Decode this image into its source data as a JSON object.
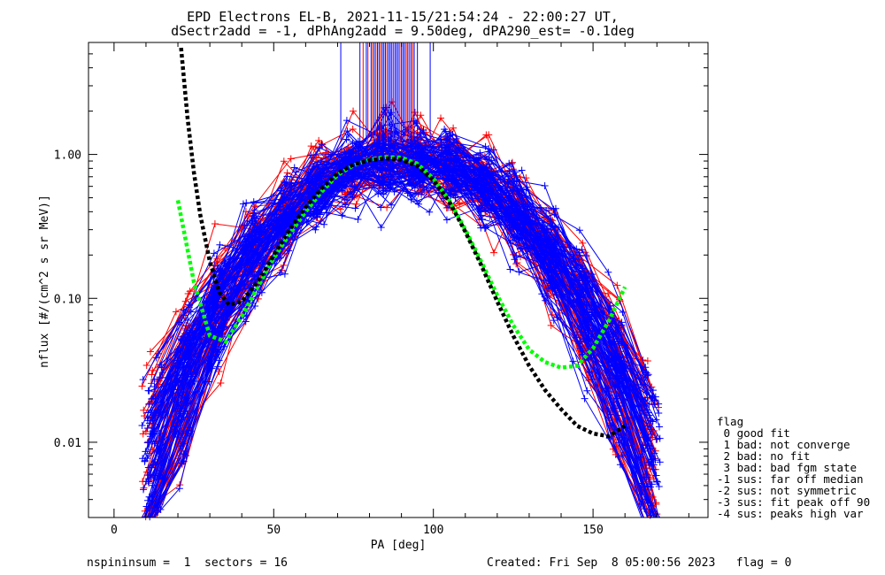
{
  "chart_data": {
    "type": "line",
    "title": "EPD Electrons EL-B, 2021-11-15/21:54:24 - 22:00:27 UT,",
    "subtitle": "dSectr2add = -1, dPhAng2add = 9.50deg, dPA290_est=  -0.1deg",
    "xlabel": "PA [deg]",
    "ylabel": "nflux [#/(cm^2 s sr MeV)]",
    "xlim": [
      -8,
      186
    ],
    "ylim": [
      0.003,
      6
    ],
    "yscale": "log",
    "x_ticks": [
      "0",
      "50",
      "100",
      "150"
    ],
    "x_tick_values": [
      0,
      50,
      100,
      150
    ],
    "y_ticks": [
      "0.01",
      "0.10",
      "1.00"
    ],
    "y_tick_values": [
      0.01,
      0.1,
      1.0
    ],
    "series": [
      {
        "color": "#0000ff",
        "style": "solid-plus",
        "n_curves": 95
      },
      {
        "color": "#ff0000",
        "style": "solid-plus",
        "n_curves": 60
      },
      {
        "color": "#00ff00",
        "style": "dashed",
        "x": [
          20,
          25,
          30,
          35,
          40,
          45,
          50,
          55,
          60,
          65,
          70,
          75,
          80,
          85,
          90,
          95,
          100,
          105,
          110,
          115,
          120,
          125,
          130,
          135,
          140,
          145,
          150,
          155,
          160
        ],
        "y": [
          0.48,
          0.13,
          0.055,
          0.05,
          0.075,
          0.12,
          0.19,
          0.28,
          0.4,
          0.55,
          0.72,
          0.84,
          0.92,
          0.96,
          0.95,
          0.86,
          0.68,
          0.48,
          0.3,
          0.18,
          0.105,
          0.065,
          0.044,
          0.036,
          0.033,
          0.034,
          0.045,
          0.07,
          0.12
        ]
      },
      {
        "color": "#000000",
        "style": "dashed",
        "x": [
          21,
          23,
          25,
          27,
          30,
          33,
          36,
          40,
          45,
          50,
          55,
          60,
          65,
          70,
          75,
          80,
          85,
          90,
          95,
          100,
          105,
          110,
          115,
          120,
          125,
          130,
          135,
          140,
          145,
          150,
          155,
          160
        ],
        "y": [
          5.5,
          1.8,
          0.75,
          0.38,
          0.18,
          0.11,
          0.09,
          0.095,
          0.13,
          0.2,
          0.3,
          0.43,
          0.58,
          0.74,
          0.85,
          0.91,
          0.94,
          0.92,
          0.83,
          0.66,
          0.47,
          0.29,
          0.17,
          0.095,
          0.055,
          0.034,
          0.023,
          0.017,
          0.013,
          0.0115,
          0.011,
          0.013
        ]
      }
    ],
    "vertical_markers": {
      "blue_x": [
        71,
        77,
        79,
        80.5,
        81.5,
        82.5,
        83,
        84,
        84.5,
        85,
        86,
        86.5,
        87,
        88,
        88.5,
        89,
        90,
        90.5,
        91,
        92,
        93,
        94,
        95,
        99
      ],
      "red_x": [
        78,
        79.5,
        81,
        82,
        83.5,
        85.5,
        87.5,
        89.5,
        91.5,
        92.5,
        93.5
      ],
      "top_value": 6,
      "bottom_value": 1.25
    },
    "legend": {
      "placement": "right-bottom",
      "title": "flag",
      "entries": [
        " 0 good fit",
        " 1 bad: not converge",
        " 2 bad: no fit",
        " 3 bad: bad fgm state",
        "-1 sus: far off median",
        "-2 sus: not symmetric",
        "-3 sus: fit peak off 90",
        "-4 sus: peaks high var"
      ]
    },
    "footer_left": "nspininsum =  1  sectors = 16",
    "footer_right": "Created: Fri Sep  8 05:00:56 2023   flag = 0"
  }
}
